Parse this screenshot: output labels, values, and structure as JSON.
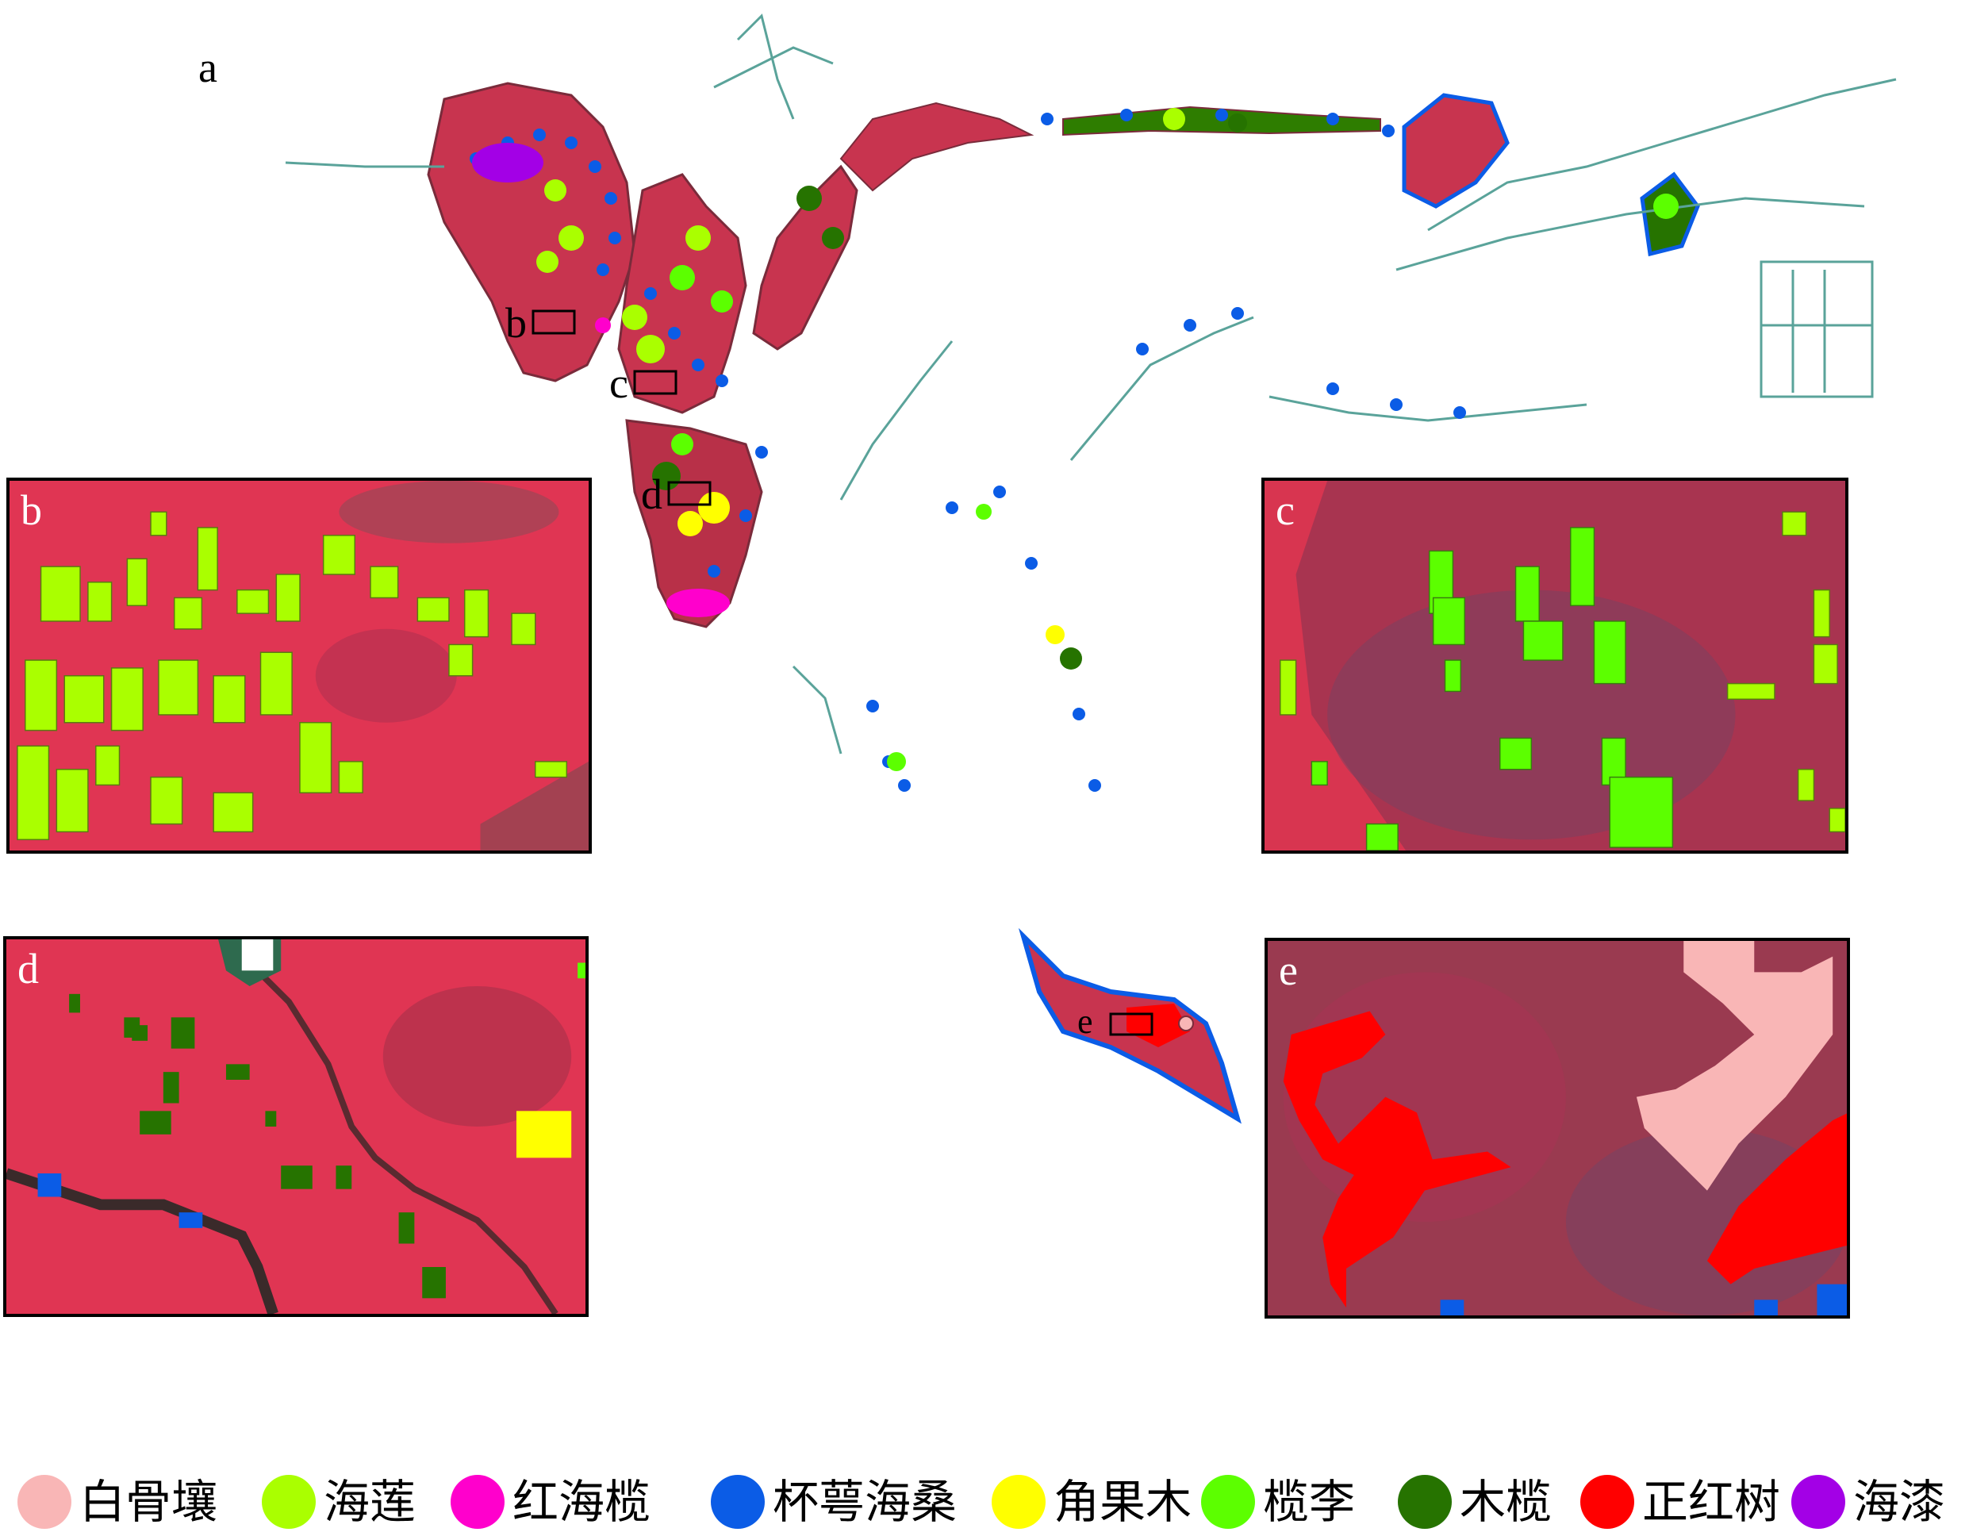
{
  "panels": {
    "a": "a",
    "b": "b",
    "c": "c",
    "d": "d",
    "e": "e"
  },
  "colors": {
    "background_tissue": "#d8304a",
    "dark_tissue": "#8a3a4a",
    "water": "#ffffff",
    "channel": "#5aa39a"
  },
  "legend": [
    {
      "label": "白骨壤",
      "color": "#f9b6b6"
    },
    {
      "label": "海莲",
      "color": "#aaff00"
    },
    {
      "label": "红海榄",
      "color": "#ff00cc"
    },
    {
      "label": "杯萼海桑",
      "color": "#0b5ce6"
    },
    {
      "label": "角果木",
      "color": "#ffff00"
    },
    {
      "label": "榄李",
      "color": "#5cff00"
    },
    {
      "label": "木榄",
      "color": "#267300"
    },
    {
      "label": "正红树",
      "color": "#ff0000"
    },
    {
      "label": "海漆",
      "color": "#a300e6"
    }
  ]
}
